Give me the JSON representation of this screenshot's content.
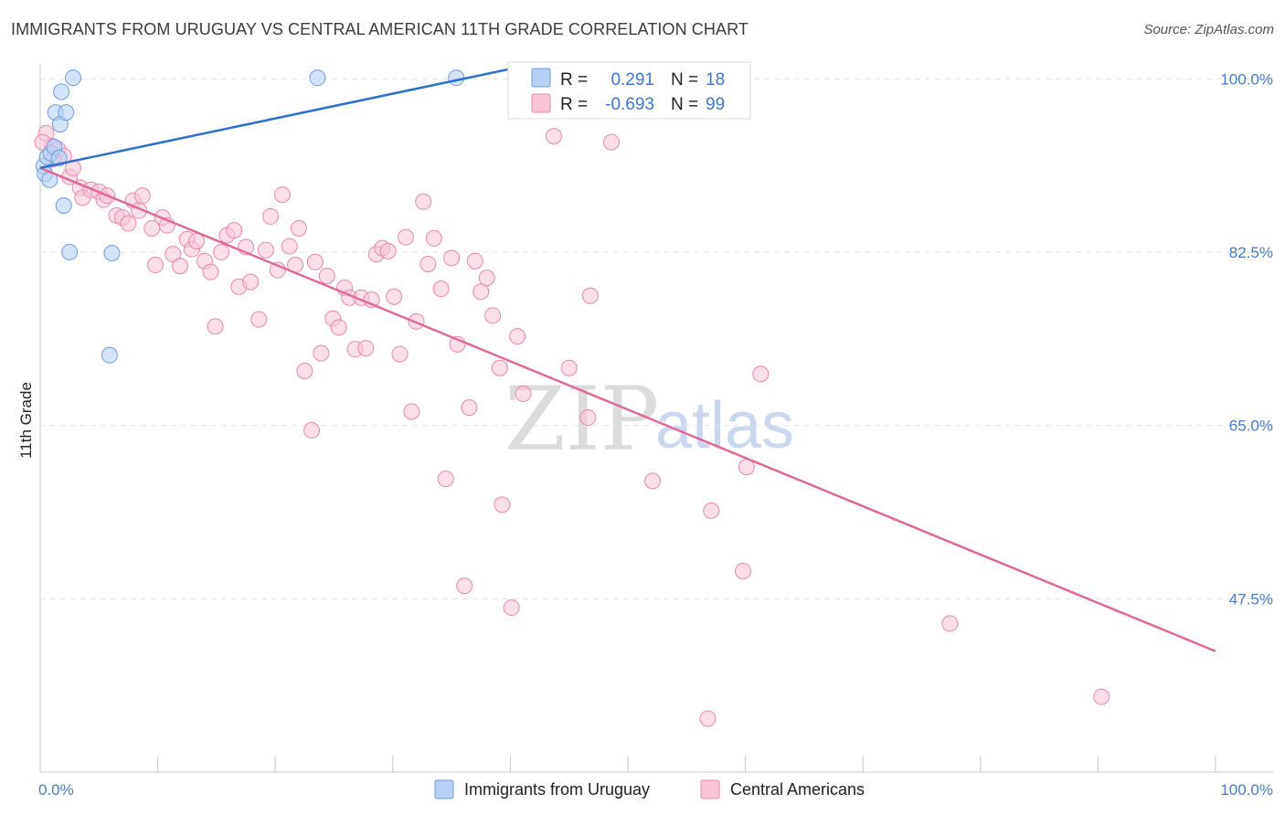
{
  "title": "IMMIGRANTS FROM URUGUAY VS CENTRAL AMERICAN 11TH GRADE CORRELATION CHART",
  "source": "Source: ZipAtlas.com",
  "watermark": {
    "zip": "ZIP",
    "atlas": "atlas"
  },
  "colors": {
    "blue_fill": "#b7d0f3",
    "blue_stroke": "#6f9ddf",
    "blue_line": "#2f6fcf",
    "pink_fill": "#f7c5d6",
    "pink_stroke": "#e889ab",
    "pink_line": "#e06a97",
    "grid": "#e3e3e3",
    "tick_label": "#4a7cc9"
  },
  "chart_data": {
    "type": "scatter",
    "title": "IMMIGRANTS FROM URUGUAY VS CENTRAL AMERICAN 11TH GRADE CORRELATION CHART",
    "xlabel": "",
    "ylabel": "11th Grade",
    "xlim": [
      0,
      100
    ],
    "ylim": [
      30,
      101.5
    ],
    "x_tick_labels": [
      "0.0%",
      "100.0%"
    ],
    "y_ticks": [
      47.5,
      65.0,
      82.5,
      100.0
    ],
    "y_tick_labels": [
      "47.5%",
      "65.0%",
      "82.5%",
      "100.0%"
    ],
    "grid": true,
    "legend_position": "top-center",
    "legend": [
      {
        "name": "Immigrants from Uruguay",
        "r_label": "R =",
        "r": "0.291",
        "n_label": "N =",
        "n": "18"
      },
      {
        "name": "Central Americans",
        "r_label": "R =",
        "r": "-0.693",
        "n_label": "N =",
        "n": "99"
      }
    ],
    "series": [
      {
        "name": "Immigrants from Uruguay",
        "color": "#b7d0f3",
        "trend": {
          "x": [
            0,
            40
          ],
          "y": [
            91.0,
            101.0
          ]
        },
        "points": [
          {
            "x": 0.3,
            "y": 91.2
          },
          {
            "x": 0.4,
            "y": 90.4
          },
          {
            "x": 0.6,
            "y": 92.1
          },
          {
            "x": 0.8,
            "y": 89.8
          },
          {
            "x": 0.9,
            "y": 92.5
          },
          {
            "x": 1.2,
            "y": 93.1
          },
          {
            "x": 1.3,
            "y": 96.6
          },
          {
            "x": 1.6,
            "y": 92.0
          },
          {
            "x": 1.7,
            "y": 95.4
          },
          {
            "x": 1.8,
            "y": 98.7
          },
          {
            "x": 2.0,
            "y": 87.2
          },
          {
            "x": 2.2,
            "y": 96.6
          },
          {
            "x": 2.5,
            "y": 82.5
          },
          {
            "x": 2.8,
            "y": 100.1
          },
          {
            "x": 6.1,
            "y": 82.4
          },
          {
            "x": 5.9,
            "y": 72.1
          },
          {
            "x": 23.6,
            "y": 100.1
          },
          {
            "x": 35.4,
            "y": 100.1
          }
        ]
      },
      {
        "name": "Central Americans",
        "color": "#f7c5d6",
        "trend": {
          "x": [
            0,
            100
          ],
          "y": [
            91.0,
            42.2
          ]
        },
        "points": [
          {
            "x": 0.5,
            "y": 94.5
          },
          {
            "x": 1.0,
            "y": 93.2
          },
          {
            "x": 1.5,
            "y": 92.9
          },
          {
            "x": 2.0,
            "y": 92.2
          },
          {
            "x": 2.5,
            "y": 90.1
          },
          {
            "x": 2.8,
            "y": 91.0
          },
          {
            "x": 3.4,
            "y": 89.0
          },
          {
            "x": 3.6,
            "y": 88.0
          },
          {
            "x": 4.3,
            "y": 88.8
          },
          {
            "x": 5.0,
            "y": 88.6
          },
          {
            "x": 5.4,
            "y": 87.8
          },
          {
            "x": 5.7,
            "y": 88.2
          },
          {
            "x": 6.5,
            "y": 86.2
          },
          {
            "x": 7.0,
            "y": 86.0
          },
          {
            "x": 7.5,
            "y": 85.4
          },
          {
            "x": 7.9,
            "y": 87.7
          },
          {
            "x": 8.4,
            "y": 86.7
          },
          {
            "x": 8.7,
            "y": 88.2
          },
          {
            "x": 9.5,
            "y": 84.9
          },
          {
            "x": 9.8,
            "y": 81.2
          },
          {
            "x": 10.4,
            "y": 86.0
          },
          {
            "x": 10.8,
            "y": 85.2
          },
          {
            "x": 11.3,
            "y": 82.3
          },
          {
            "x": 11.9,
            "y": 81.1
          },
          {
            "x": 12.5,
            "y": 83.8
          },
          {
            "x": 12.9,
            "y": 82.8
          },
          {
            "x": 13.3,
            "y": 83.6
          },
          {
            "x": 14.0,
            "y": 81.6
          },
          {
            "x": 14.5,
            "y": 80.5
          },
          {
            "x": 14.9,
            "y": 75.0
          },
          {
            "x": 15.4,
            "y": 82.5
          },
          {
            "x": 15.9,
            "y": 84.2
          },
          {
            "x": 16.5,
            "y": 84.7
          },
          {
            "x": 16.9,
            "y": 79.0
          },
          {
            "x": 17.5,
            "y": 83.0
          },
          {
            "x": 17.9,
            "y": 79.5
          },
          {
            "x": 18.6,
            "y": 75.7
          },
          {
            "x": 19.2,
            "y": 82.7
          },
          {
            "x": 19.6,
            "y": 86.1
          },
          {
            "x": 20.2,
            "y": 80.7
          },
          {
            "x": 20.6,
            "y": 88.3
          },
          {
            "x": 21.2,
            "y": 83.1
          },
          {
            "x": 21.7,
            "y": 81.2
          },
          {
            "x": 22.0,
            "y": 84.9
          },
          {
            "x": 22.5,
            "y": 70.5
          },
          {
            "x": 23.1,
            "y": 64.5
          },
          {
            "x": 23.4,
            "y": 81.5
          },
          {
            "x": 23.9,
            "y": 72.3
          },
          {
            "x": 24.4,
            "y": 80.1
          },
          {
            "x": 24.9,
            "y": 75.8
          },
          {
            "x": 25.4,
            "y": 74.9
          },
          {
            "x": 25.9,
            "y": 78.9
          },
          {
            "x": 26.3,
            "y": 77.9
          },
          {
            "x": 26.8,
            "y": 72.7
          },
          {
            "x": 27.3,
            "y": 77.9
          },
          {
            "x": 27.7,
            "y": 72.8
          },
          {
            "x": 28.2,
            "y": 77.7
          },
          {
            "x": 28.6,
            "y": 82.3
          },
          {
            "x": 29.1,
            "y": 82.9
          },
          {
            "x": 29.6,
            "y": 82.6
          },
          {
            "x": 30.1,
            "y": 78.0
          },
          {
            "x": 30.6,
            "y": 72.2
          },
          {
            "x": 31.1,
            "y": 84.0
          },
          {
            "x": 31.6,
            "y": 66.4
          },
          {
            "x": 32.0,
            "y": 75.5
          },
          {
            "x": 32.6,
            "y": 87.6
          },
          {
            "x": 33.0,
            "y": 81.3
          },
          {
            "x": 33.5,
            "y": 83.9
          },
          {
            "x": 34.1,
            "y": 78.8
          },
          {
            "x": 34.5,
            "y": 59.6
          },
          {
            "x": 35.0,
            "y": 81.9
          },
          {
            "x": 35.5,
            "y": 73.2
          },
          {
            "x": 36.1,
            "y": 48.8
          },
          {
            "x": 36.5,
            "y": 66.8
          },
          {
            "x": 37.0,
            "y": 81.6
          },
          {
            "x": 37.5,
            "y": 78.5
          },
          {
            "x": 38.0,
            "y": 79.9
          },
          {
            "x": 38.5,
            "y": 76.1
          },
          {
            "x": 39.1,
            "y": 70.8
          },
          {
            "x": 39.3,
            "y": 57.0
          },
          {
            "x": 40.1,
            "y": 46.6
          },
          {
            "x": 40.6,
            "y": 74.0
          },
          {
            "x": 41.1,
            "y": 68.2
          },
          {
            "x": 43.7,
            "y": 94.2
          },
          {
            "x": 45.0,
            "y": 70.8
          },
          {
            "x": 46.6,
            "y": 65.8
          },
          {
            "x": 46.8,
            "y": 78.1
          },
          {
            "x": 48.6,
            "y": 93.6
          },
          {
            "x": 52.1,
            "y": 59.4
          },
          {
            "x": 56.8,
            "y": 35.4
          },
          {
            "x": 57.1,
            "y": 56.4
          },
          {
            "x": 59.8,
            "y": 50.3
          },
          {
            "x": 60.1,
            "y": 60.8
          },
          {
            "x": 61.3,
            "y": 70.2
          },
          {
            "x": 77.4,
            "y": 45.0
          },
          {
            "x": 90.3,
            "y": 37.6
          },
          {
            "x": 49.5,
            "y": 100.2
          },
          {
            "x": 0.2,
            "y": 93.6
          },
          {
            "x": 1.1,
            "y": 91.9
          }
        ]
      }
    ]
  }
}
